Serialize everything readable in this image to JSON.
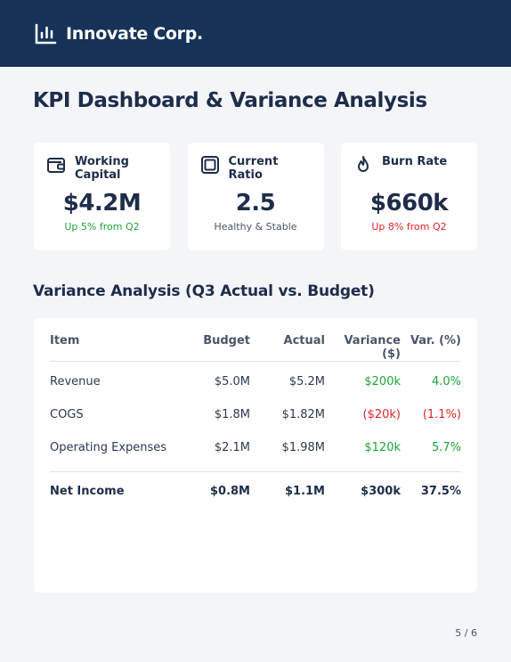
{
  "header": {
    "brand": "Innovate Corp."
  },
  "page_title": "KPI Dashboard & Variance Analysis",
  "kpis": [
    {
      "label_line1": "Working",
      "label_line2": "Capital",
      "value": "$4.2M",
      "sub": "Up 5% from Q2",
      "sub_color": "#1fa33a",
      "icon": "wallet-icon"
    },
    {
      "label_line1": "Current Ratio",
      "label_line2": "",
      "value": "2.5",
      "sub": "Healthy & Stable",
      "sub_color": "#4a5668",
      "icon": "copy-squares-icon"
    },
    {
      "label_line1": "Burn Rate",
      "label_line2": "",
      "value": "$660k",
      "sub": "Up 8% from Q2",
      "sub_color": "#e0252b",
      "icon": "flame-icon"
    }
  ],
  "variance": {
    "title": "Variance Analysis (Q3 Actual vs. Budget)",
    "columns": [
      "Item",
      "Budget",
      "Actual",
      "Variance ($)",
      "Var. (%)"
    ],
    "rows": [
      {
        "item": "Revenue",
        "budget": "$5.0M",
        "actual": "$5.2M",
        "var_usd": "$200k",
        "var_pct": "4.0%"
      },
      {
        "item": "COGS",
        "budget": "$1.8M",
        "actual": "$1.82M",
        "var_usd": "($20k)",
        "var_pct": "(1.1%)"
      },
      {
        "item": "Operating Expenses",
        "budget": "$2.1M",
        "actual": "$1.98M",
        "var_usd": "$120k",
        "var_pct": "5.7%"
      }
    ],
    "total": {
      "item": "Net Income",
      "budget": "$0.8M",
      "actual": "$1.1M",
      "var_usd": "$300k",
      "var_pct": "37.5%"
    }
  },
  "pager": "5 / 6",
  "colors": {
    "header_bg": "#163258",
    "positive": "#1fa33a",
    "negative": "#e0252b"
  }
}
